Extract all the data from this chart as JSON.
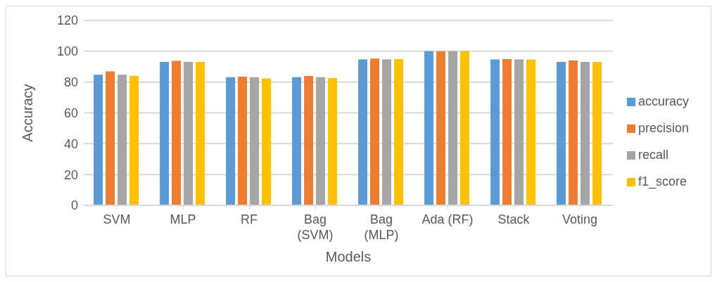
{
  "chart_data": {
    "type": "bar",
    "xlabel": "Models",
    "ylabel": "Accuracy",
    "categories": [
      "SVM",
      "MLP",
      "RF",
      "Bag (SVM)",
      "Bag (MLP)",
      "Ada (RF)",
      "Stack",
      "Voting"
    ],
    "series": [
      {
        "name": "accuracy",
        "color": "#5b9bd5",
        "values": [
          84.7,
          93.1,
          83.2,
          83.2,
          94.7,
          100,
          94.7,
          93.1
        ]
      },
      {
        "name": "precision",
        "color": "#ed7d31",
        "values": [
          86.9,
          93.8,
          83.5,
          83.9,
          95.2,
          100,
          94.9,
          94.0
        ]
      },
      {
        "name": "recall",
        "color": "#a5a5a5",
        "values": [
          84.7,
          93.1,
          83.2,
          83.2,
          94.7,
          100,
          94.7,
          93.1
        ]
      },
      {
        "name": "f1_score",
        "color": "#ffc000",
        "values": [
          84.1,
          93.1,
          82.4,
          82.6,
          94.9,
          100,
          94.7,
          93.1
        ]
      }
    ],
    "ylim": [
      0,
      120
    ],
    "yticks": [
      0,
      20,
      40,
      60,
      80,
      100,
      120
    ],
    "grid": "y",
    "legend": "right"
  }
}
